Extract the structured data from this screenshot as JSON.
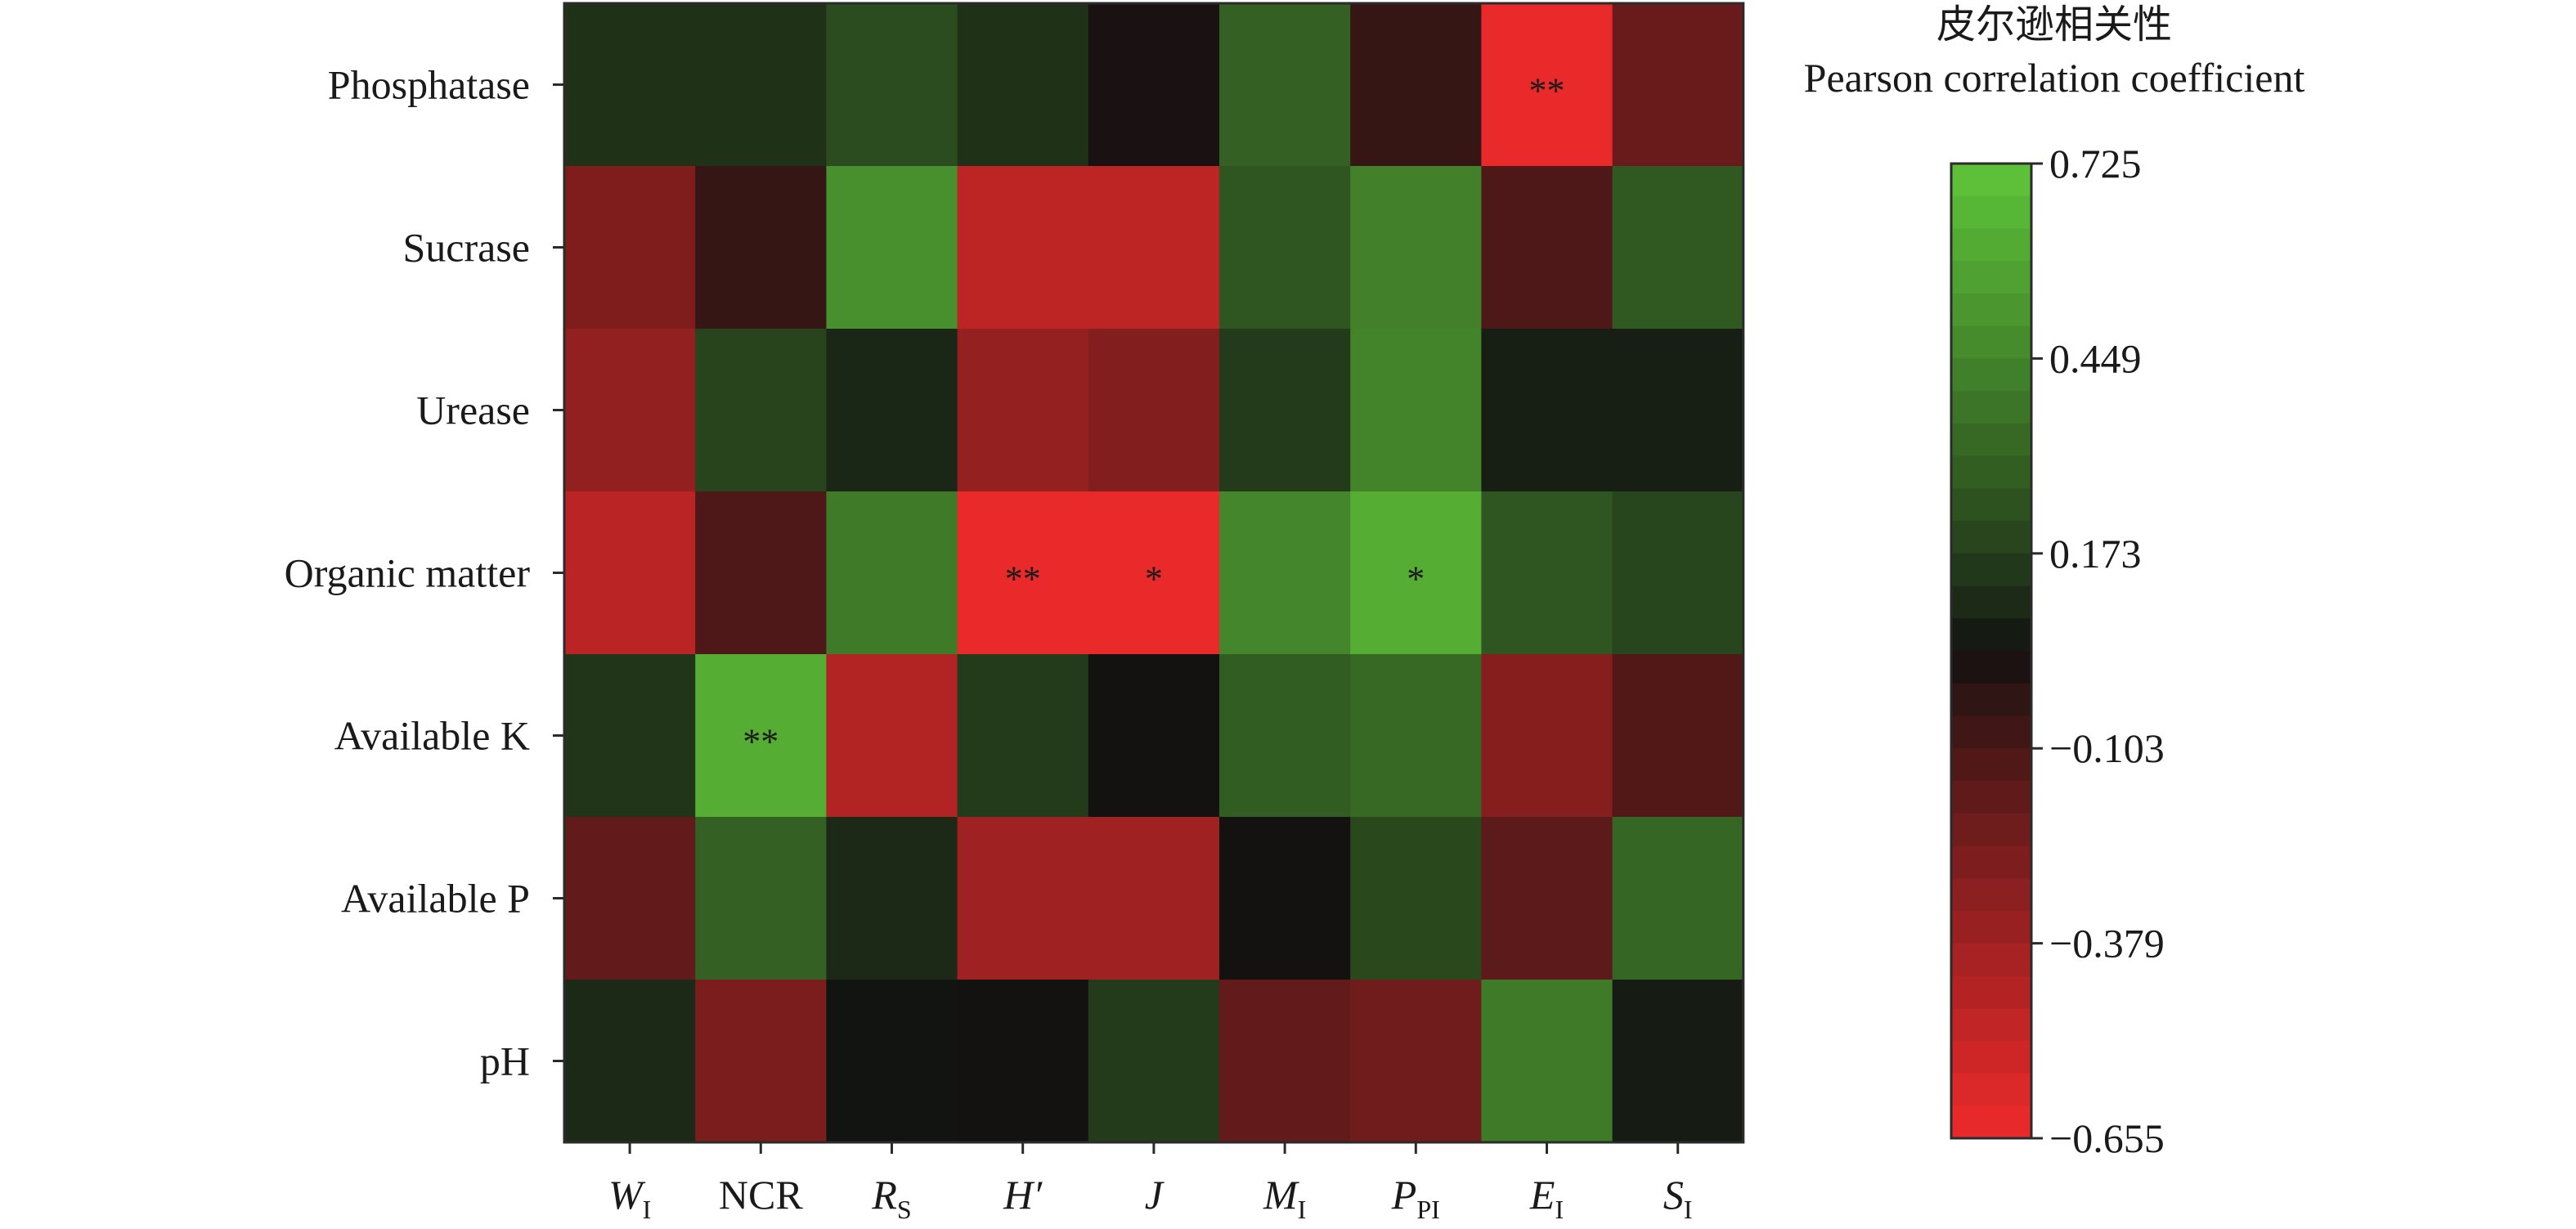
{
  "chart_data": {
    "type": "heatmap",
    "title": "",
    "rows": [
      "Phosphatase",
      "Sucrase",
      "Urease",
      "Organic matter",
      "Available K",
      "Available P",
      "pH"
    ],
    "columns": [
      {
        "main": "W",
        "sub": "I",
        "italic": true
      },
      {
        "main": "NCR",
        "sub": "",
        "italic": false
      },
      {
        "main": "R",
        "sub": "S",
        "italic": true
      },
      {
        "main": "H′",
        "sub": "",
        "italic": true
      },
      {
        "main": "J",
        "sub": "",
        "italic": true
      },
      {
        "main": "M",
        "sub": "I",
        "italic": true
      },
      {
        "main": "P",
        "sub": "PI",
        "italic": true
      },
      {
        "main": "E",
        "sub": "I",
        "italic": true
      },
      {
        "main": "S",
        "sub": "I",
        "italic": true
      }
    ],
    "values": [
      [
        0.13,
        0.13,
        0.22,
        0.13,
        0.02,
        0.3,
        -0.05,
        -0.64,
        -0.2
      ],
      [
        -0.27,
        -0.05,
        0.49,
        -0.48,
        -0.48,
        0.26,
        0.43,
        -0.12,
        0.27
      ],
      [
        -0.33,
        0.19,
        0.09,
        -0.34,
        -0.28,
        0.16,
        0.44,
        0.07,
        0.07
      ],
      [
        -0.47,
        -0.12,
        0.4,
        -0.64,
        -0.64,
        0.45,
        0.62,
        0.26,
        0.2
      ],
      [
        0.14,
        0.62,
        -0.44,
        0.16,
        0.03,
        0.28,
        0.33,
        -0.29,
        -0.13
      ],
      [
        -0.18,
        0.3,
        0.1,
        -0.38,
        -0.38,
        0.03,
        0.21,
        -0.16,
        0.32
      ],
      [
        0.1,
        -0.26,
        0.04,
        0.03,
        0.16,
        -0.18,
        -0.22,
        0.4,
        0.06
      ]
    ],
    "significance": [
      [
        "",
        "",
        "",
        "",
        "",
        "",
        "",
        "**",
        ""
      ],
      [
        "",
        "",
        "",
        "",
        "",
        "",
        "",
        "",
        ""
      ],
      [
        "",
        "",
        "",
        "",
        "",
        "",
        "",
        "",
        ""
      ],
      [
        "",
        "",
        "",
        "**",
        "*",
        "",
        "*",
        "",
        ""
      ],
      [
        "",
        "**",
        "",
        "",
        "",
        "",
        "",
        "",
        ""
      ],
      [
        "",
        "",
        "",
        "",
        "",
        "",
        "",
        "",
        ""
      ],
      [
        "",
        "",
        "",
        "",
        "",
        "",
        "",
        "",
        ""
      ]
    ],
    "colorbar": {
      "title_cn": "皮尔逊相关性",
      "title_en": "Pearson correlation coefficient",
      "min": -0.655,
      "max": 0.725,
      "ticks": [
        0.725,
        0.449,
        0.173,
        -0.103,
        -0.379,
        -0.655
      ],
      "tick_labels": [
        "0.725",
        "0.449",
        "0.173",
        "−0.103",
        "−0.379",
        "−0.655"
      ],
      "bands": 30,
      "low_color": "#ee2a2a",
      "mid_color": "#111111",
      "high_color": "#5fc539"
    }
  }
}
